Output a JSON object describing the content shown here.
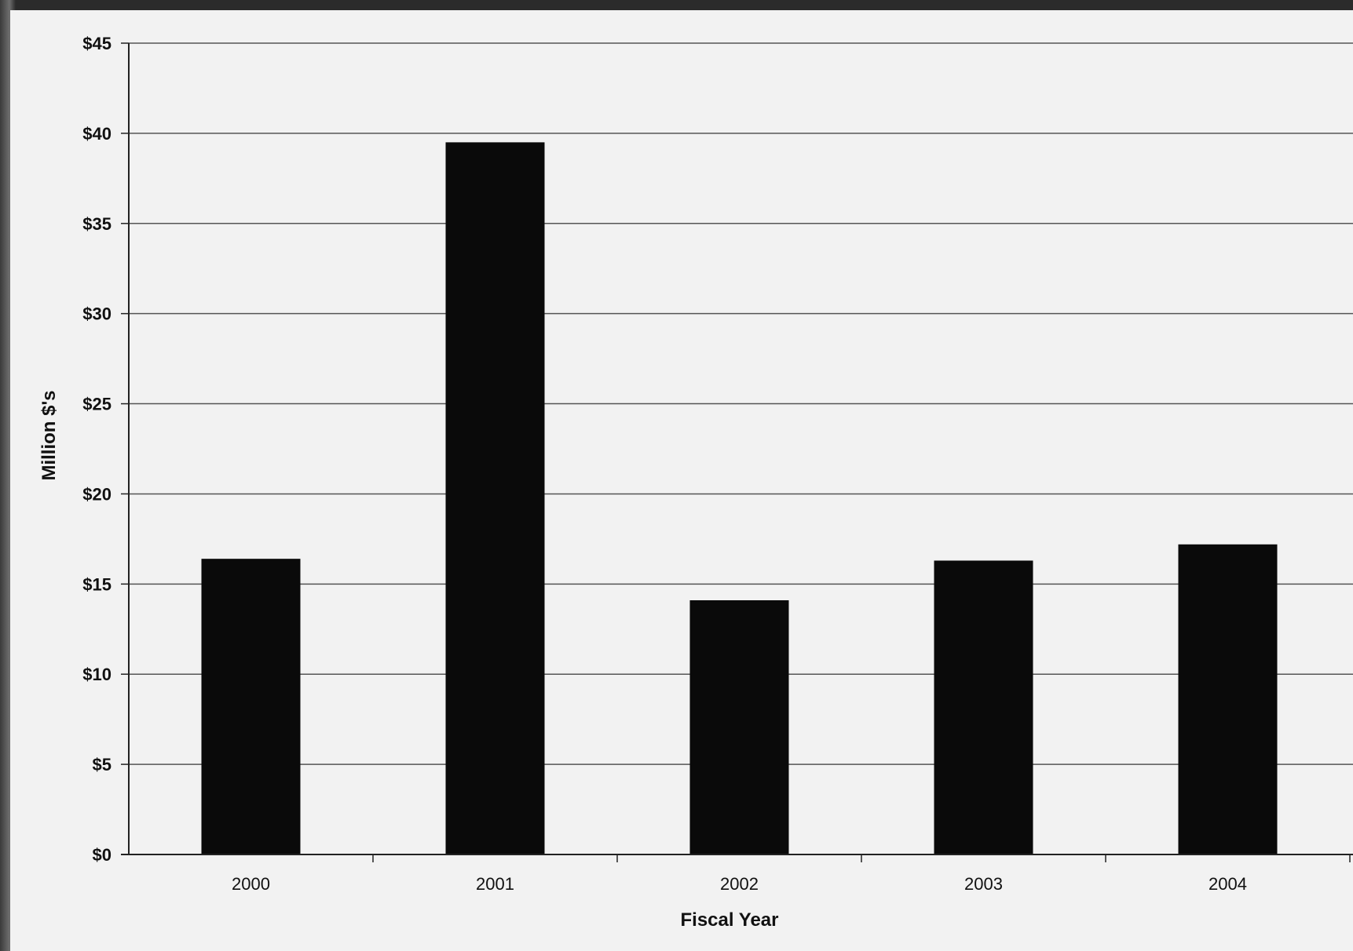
{
  "chart_data": {
    "type": "bar",
    "categories": [
      "2000",
      "2001",
      "2002",
      "2003",
      "2004"
    ],
    "values": [
      16.4,
      39.5,
      14.1,
      16.3,
      17.2
    ],
    "title": "",
    "xlabel": "Fiscal Year",
    "ylabel": "Million $'s",
    "ylim": [
      0,
      45
    ],
    "yticks": [
      0,
      5,
      10,
      15,
      20,
      25,
      30,
      35,
      40,
      45
    ],
    "ytick_labels": [
      "$0",
      "$5",
      "$10",
      "$15",
      "$20",
      "$25",
      "$30",
      "$35",
      "$40",
      "$45"
    ],
    "grid": true,
    "legend": "none",
    "colors": {
      "bar": "#0a0a0a",
      "grid": "#555555",
      "background": "#f2f2f2"
    }
  }
}
